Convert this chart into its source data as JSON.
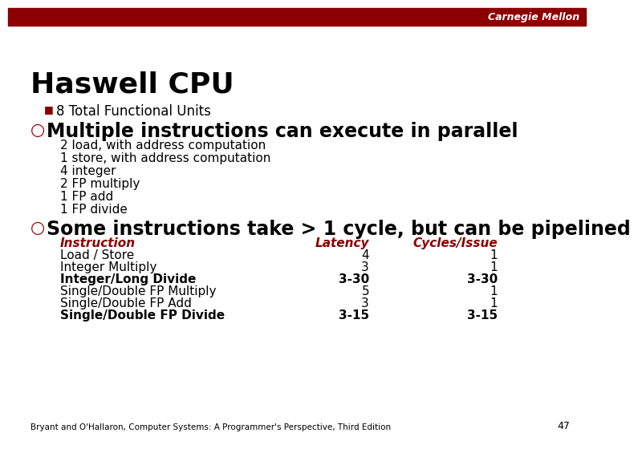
{
  "title": "Haswell CPU",
  "header_bar_color": "#8B0000",
  "header_text": "Carnegie Mellon",
  "header_text_color": "#FFFFFF",
  "background_color": "#FFFFFF",
  "title_color": "#000000",
  "title_fontsize": 26,
  "bullet1_marker": "■",
  "bullet1_marker_color": "#8B0000",
  "bullet1_text": "8 Total Functional Units",
  "bullet1_fontsize": 12,
  "circle_bullet_color": "#8B0000",
  "section1_heading": "Multiple instructions can execute in parallel",
  "section1_heading_fontsize": 17,
  "section1_items": [
    "2 load, with address computation",
    "1 store, with address computation",
    "4 integer",
    "2 FP multiply",
    "1 FP add",
    "1 FP divide"
  ],
  "section1_items_fontsize": 11,
  "section2_heading": "Some instructions take > 1 cycle, but can be pipelined",
  "section2_heading_fontsize": 17,
  "table_header": [
    "Instruction",
    "Latency",
    "Cycles/Issue"
  ],
  "table_header_color": "#8B0000",
  "table_header_fontsize": 11,
  "table_rows": [
    [
      "Load / Store",
      "4",
      "1",
      false
    ],
    [
      "Integer Multiply",
      "3",
      "1",
      false
    ],
    [
      "Integer/Long Divide",
      "3-30",
      "3-30",
      true
    ],
    [
      "Single/Double FP Multiply",
      "5",
      "1",
      false
    ],
    [
      "Single/Double FP Add",
      "3",
      "1",
      false
    ],
    [
      "Single/Double FP Divide",
      "3-15",
      "3-15",
      true
    ]
  ],
  "table_fontsize": 11,
  "footer_text": "Bryant and O'Hallaron, Computer Systems: A Programmer's Perspective, Third Edition",
  "footer_fontsize": 7.5,
  "page_number": "47",
  "page_number_fontsize": 9
}
